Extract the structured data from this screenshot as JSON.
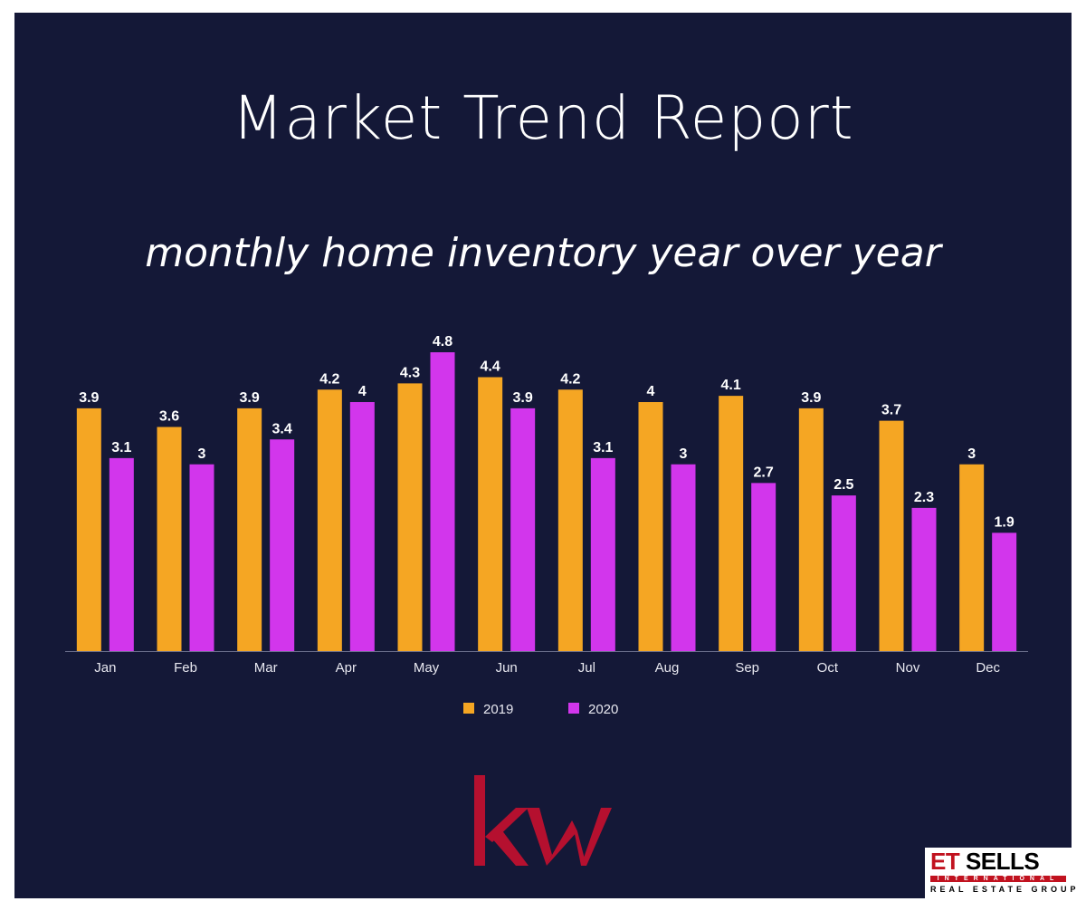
{
  "header": {
    "title": "Market Trend Report",
    "subtitle": "monthly home inventory year over year"
  },
  "chart_data": {
    "type": "bar",
    "categories": [
      "Jan",
      "Feb",
      "Mar",
      "Apr",
      "May",
      "Jun",
      "Jul",
      "Aug",
      "Sep",
      "Oct",
      "Nov",
      "Dec"
    ],
    "series": [
      {
        "name": "2019",
        "color": "#F5A623",
        "values": [
          3.9,
          3.6,
          3.9,
          4.2,
          4.3,
          4.4,
          4.2,
          4,
          4.1,
          3.9,
          3.7,
          3
        ],
        "labels": [
          "3.9",
          "3.6",
          "3.9",
          "4.2",
          "4.3",
          "4.4",
          "4.2",
          "4",
          "4.1",
          "3.9",
          "3.7",
          "3"
        ]
      },
      {
        "name": "2020",
        "color": "#D236EC",
        "values": [
          3.1,
          3,
          3.4,
          4,
          4.8,
          3.9,
          3.1,
          3,
          2.7,
          2.5,
          2.3,
          1.9
        ],
        "labels": [
          "3.1",
          "3",
          "3.4",
          "4",
          "4.8",
          "3.9",
          "3.1",
          "3",
          "2.7",
          "2.5",
          "2.3",
          "1.9"
        ]
      }
    ],
    "ylim": [
      0,
      4.8
    ],
    "legend": "bottom-center",
    "grid": false
  },
  "logos": {
    "kw": "kw",
    "et": "ET",
    "sells": "SELLS",
    "international": "INTERNATIONAL",
    "group": "REAL ESTATE GROUP"
  },
  "colors": {
    "background": "#141837",
    "border": "#ffffff",
    "kw_red": "#B5102F",
    "brand_red": "#c1121f"
  }
}
